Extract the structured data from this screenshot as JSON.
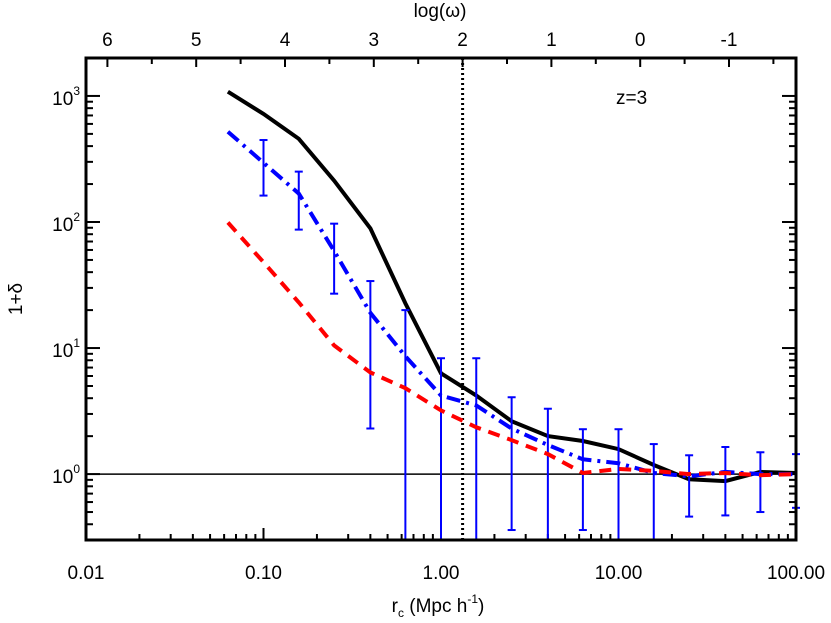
{
  "chart_data": {
    "type": "line",
    "xlabel": {
      "main": "r",
      "sub": "c",
      "rest": " (Mpc  h",
      "sup": "-1",
      "close": ")"
    },
    "ylabel": "1+δ",
    "top_xlabel": "log(ω)",
    "annotation": "z=3",
    "x_scale": "log",
    "y_scale": "log",
    "xlim": [
      0.01,
      100
    ],
    "ylim": [
      0.3,
      2000
    ],
    "x_ticks": [
      0.01,
      0.1,
      1,
      10,
      100
    ],
    "x_tick_labels": [
      "0.01",
      "0.10",
      "1.00",
      "10.00",
      "100.00"
    ],
    "y_ticks": [
      1,
      10,
      100,
      1000
    ],
    "y_tick_labels": [
      {
        "base": "10",
        "exp": "0"
      },
      {
        "base": "10",
        "exp": "1"
      },
      {
        "base": "10",
        "exp": "2"
      },
      {
        "base": "10",
        "exp": "3"
      }
    ],
    "top_ticks": [
      6,
      5,
      4,
      3,
      2,
      1,
      0,
      -1
    ],
    "top_tick_labels": [
      "6",
      "5",
      "4",
      "3",
      "2",
      "1",
      "0",
      "-1"
    ],
    "reference_hline": 1,
    "reference_vline_log_omega": 2,
    "grid": false,
    "series": [
      {
        "style": "solid",
        "color": "#000000",
        "x": [
          0.063,
          0.1,
          0.158,
          0.25,
          0.4,
          0.63,
          1.0,
          1.58,
          2.5,
          4.0,
          6.3,
          10,
          15.8,
          25,
          40,
          63,
          100
        ],
        "y": [
          1080,
          720,
          457,
          213,
          89,
          22.6,
          6.3,
          4.2,
          2.63,
          2.0,
          1.83,
          1.58,
          1.18,
          0.91,
          0.88,
          1.04,
          1.02
        ]
      },
      {
        "style": "dash-dot",
        "color": "#0000ff",
        "x": [
          0.063,
          0.1,
          0.158,
          0.25,
          0.4,
          0.63,
          1.0,
          1.58,
          2.5,
          4.0,
          6.3,
          10,
          15.8,
          25,
          40,
          63,
          100
        ],
        "y": [
          520,
          295,
          168,
          59,
          19,
          8.6,
          4.2,
          3.5,
          2.3,
          1.7,
          1.31,
          1.22,
          1.02,
          0.96,
          1.04,
          1.0,
          1.0
        ],
        "err_x": [
          0.1,
          0.158,
          0.25,
          0.4,
          0.63,
          1.0,
          1.58,
          2.5,
          4.0,
          6.3,
          10,
          15.8,
          25,
          40,
          63,
          100
        ],
        "err_high": [
          447,
          251,
          97,
          34,
          20,
          8.3,
          8.3,
          4.07,
          3.3,
          2.27,
          2.27,
          1.73,
          1.41,
          1.64,
          1.49,
          1.44
        ],
        "err_low": [
          162,
          87,
          27,
          2.3,
          0.1,
          0.1,
          0.1,
          0.36,
          0.1,
          0.36,
          0.1,
          0.3,
          0.46,
          0.47,
          0.5,
          0.54
        ]
      },
      {
        "style": "dashed",
        "color": "#ff0000",
        "x": [
          0.063,
          0.1,
          0.158,
          0.25,
          0.4,
          0.63,
          1.0,
          1.58,
          2.5,
          4.0,
          6.3,
          10,
          15.8,
          25,
          40,
          63,
          100
        ],
        "y": [
          99,
          48,
          23,
          10.5,
          6.4,
          4.8,
          3.2,
          2.35,
          1.86,
          1.44,
          1.02,
          1.1,
          1.06,
          1.0,
          1.02,
          0.98,
          1.0
        ]
      }
    ]
  }
}
